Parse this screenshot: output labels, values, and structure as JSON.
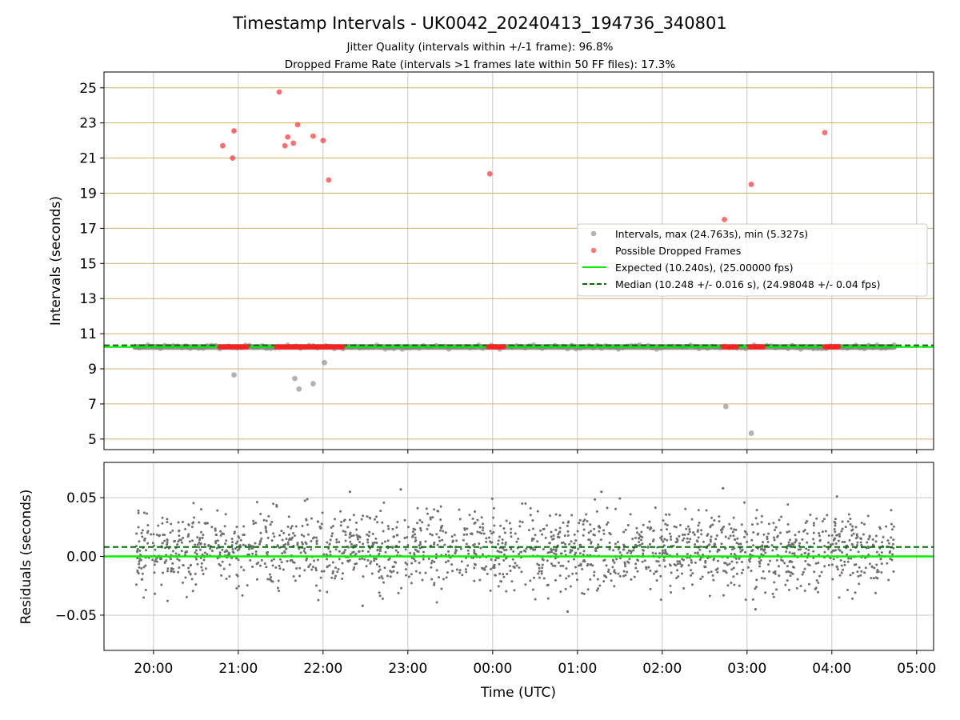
{
  "colors": {
    "interval_points": "#808080",
    "dropped_points": "#ff2020",
    "expected_line": "#00ee00",
    "median_line": "#007000",
    "gridline_y": "#d2b46c",
    "gridline": "#c8c8c8",
    "residual_points": "#707070"
  },
  "chart_data": [
    {
      "type": "scatter",
      "title": "Timestamp Intervals - UK0042_20240413_194736_340801",
      "subtitle_1": "Jitter Quality (intervals within +/-1 frame): 96.8%",
      "subtitle_2": "Dropped Frame Rate (intervals >1 frames late within 50 FF files): 17.3%",
      "xlabel": "",
      "ylabel": "Intervals (seconds)",
      "ylim": [
        4.4,
        25.9
      ],
      "yticks": [
        5,
        7,
        9,
        11,
        13,
        15,
        17,
        19,
        21,
        23,
        25
      ],
      "grid": true,
      "legend_placement": "center-right",
      "legend": [
        {
          "label": "Intervals, max (24.763s), min (5.327s)",
          "marker": "dot",
          "series": "intervals"
        },
        {
          "label": "Possible Dropped Frames",
          "marker": "dot",
          "series": "dropped"
        },
        {
          "label": "Expected (10.240s), (25.00000 fps)",
          "marker": "line",
          "series": "expected"
        },
        {
          "label": "Median (10.248 +/- 0.016 s), (24.98048 +/- 0.04 fps)",
          "marker": "dash",
          "series": "median"
        }
      ],
      "expected_interval": 10.24,
      "median_interval": 10.248,
      "interval_band": {
        "from": "19:47",
        "to": "04:44",
        "value": 10.24
      },
      "dropped_clusters": [
        {
          "from": "20:47",
          "to": "21:07",
          "value": 10.25
        },
        {
          "from": "21:27",
          "to": "22:15",
          "value": 10.25
        },
        {
          "from": "23:57",
          "to": "00:08",
          "value": 10.25
        },
        {
          "from": "02:43",
          "to": "02:53",
          "value": 10.25
        },
        {
          "from": "03:02",
          "to": "03:12",
          "value": 10.25
        },
        {
          "from": "03:55",
          "to": "04:05",
          "value": 10.25
        }
      ],
      "interval_outliers": [
        {
          "x": "20:57",
          "y": 8.65
        },
        {
          "x": "21:40",
          "y": 8.45
        },
        {
          "x": "21:43",
          "y": 7.85
        },
        {
          "x": "21:53",
          "y": 8.15
        },
        {
          "x": "22:01",
          "y": 9.35
        },
        {
          "x": "02:45",
          "y": 6.85
        },
        {
          "x": "03:03",
          "y": 5.33
        }
      ],
      "dropped_outliers": [
        {
          "x": "20:49",
          "y": 21.7
        },
        {
          "x": "20:56",
          "y": 21.0
        },
        {
          "x": "20:57",
          "y": 22.55
        },
        {
          "x": "21:29",
          "y": 24.76
        },
        {
          "x": "21:33",
          "y": 21.7
        },
        {
          "x": "21:35",
          "y": 22.2
        },
        {
          "x": "21:39",
          "y": 21.85
        },
        {
          "x": "21:42",
          "y": 22.9
        },
        {
          "x": "21:53",
          "y": 22.25
        },
        {
          "x": "22:00",
          "y": 22.0
        },
        {
          "x": "22:04",
          "y": 19.75
        },
        {
          "x": "23:58",
          "y": 20.1
        },
        {
          "x": "02:44",
          "y": 17.5
        },
        {
          "x": "03:03",
          "y": 19.5
        },
        {
          "x": "03:55",
          "y": 22.45
        }
      ]
    },
    {
      "type": "scatter",
      "xlabel": "Time (UTC)",
      "ylabel": "Residuals (seconds)",
      "ylim": [
        -0.08,
        0.08
      ],
      "yticks": [
        0.05,
        0.0,
        -0.05
      ],
      "ytick_labels": [
        "0.05",
        "0.00",
        "−0.05"
      ],
      "xlim": [
        "19:25",
        "05:12"
      ],
      "xticks": [
        "20:00",
        "21:00",
        "22:00",
        "23:00",
        "00:00",
        "01:00",
        "02:00",
        "03:00",
        "04:00",
        "05:00"
      ],
      "grid": true,
      "expected_residual": 0.0,
      "median_residual": 0.008,
      "residual_range": {
        "from": "19:47",
        "to": "04:44"
      },
      "residual_spread": {
        "center": 0.005,
        "stddev": 0.016,
        "count": 1900
      },
      "residual_extremes": [
        {
          "x": "22:19",
          "y": 0.055
        },
        {
          "x": "22:55",
          "y": 0.057
        },
        {
          "x": "01:17",
          "y": 0.055
        },
        {
          "x": "02:43",
          "y": 0.058
        },
        {
          "x": "00:53",
          "y": -0.047
        },
        {
          "x": "03:06",
          "y": -0.045
        },
        {
          "x": "22:28",
          "y": -0.042
        }
      ]
    }
  ]
}
